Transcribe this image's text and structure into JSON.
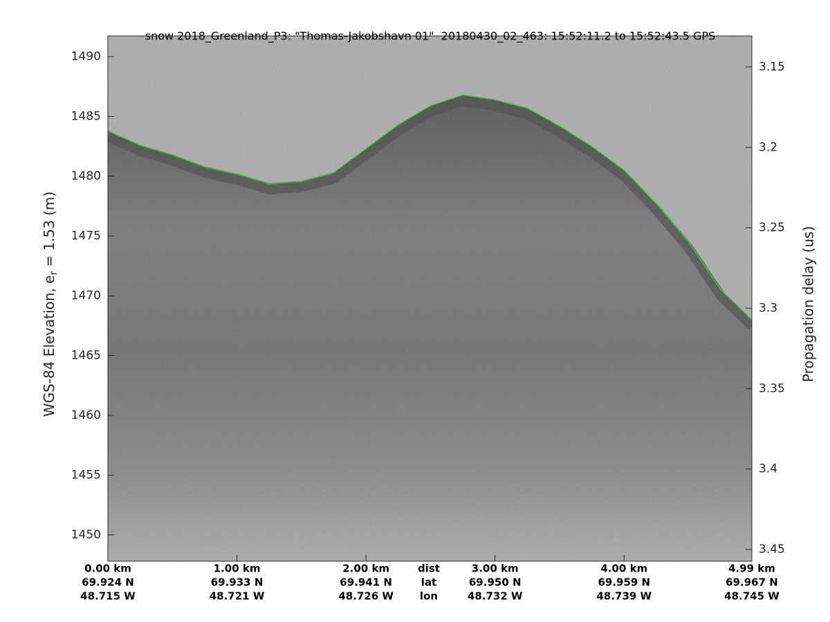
{
  "chart_data": {
    "type": "echogram",
    "title": "snow 2018_Greenland_P3: \"Thomas-Jakobshavn 01\"  20180430_02_463: 15:52:11.2 to 15:52:43.5 GPS",
    "ylabel": [
      "WGS-84 Elevation, e",
      "r",
      " = 1.53 (m)"
    ],
    "y2label": "Propagation delay (us)",
    "row_headers": [
      "dist",
      "lat",
      "lon"
    ],
    "xlim": [
      0,
      4.99
    ],
    "xticks": [
      {
        "value": 0,
        "label": "0.00 km"
      },
      {
        "value": 1,
        "label": "1.00 km"
      },
      {
        "value": 2,
        "label": "2.00 km"
      },
      {
        "value": 3,
        "label": "3.00 km"
      },
      {
        "value": 4,
        "label": "4.00 km"
      },
      {
        "value": 4.99,
        "label": "4.99 km"
      }
    ],
    "lat_labels": [
      "69.924 N",
      "69.933 N",
      "69.941 N",
      "69.950 N",
      "69.959 N",
      "69.967 N"
    ],
    "lon_labels": [
      "48.715 W",
      "48.721 W",
      "48.726 W",
      "48.732 W",
      "48.739 W",
      "48.745 W"
    ],
    "ylim": [
      1447.8,
      1491.73
    ],
    "yticks": [
      1450,
      1455,
      1460,
      1465,
      1470,
      1475,
      1480,
      1485,
      1490
    ],
    "y2lim": [
      3.4573,
      3.1307
    ],
    "y2ticks": [
      3.15,
      3.2,
      3.25,
      3.3,
      3.35,
      3.4,
      3.45
    ],
    "x": [
      0,
      0.25,
      0.5,
      0.75,
      1,
      1.25,
      1.5,
      1.75,
      2,
      2.25,
      2.5,
      2.75,
      3,
      3.25,
      3.5,
      3.75,
      4,
      4.25,
      4.5,
      4.75,
      4.99
    ],
    "series": [
      {
        "color": "#22dd22",
        "values": [
          1483.8,
          1482.6,
          1481.8,
          1480.8,
          1480.2,
          1479.4,
          1479.6,
          1480.3,
          1482.3,
          1484.3,
          1485.9,
          1486.8,
          1486.4,
          1485.7,
          1484.2,
          1482.5,
          1480.5,
          1477.7,
          1474.5,
          1470.5,
          1468.0
        ]
      }
    ]
  }
}
